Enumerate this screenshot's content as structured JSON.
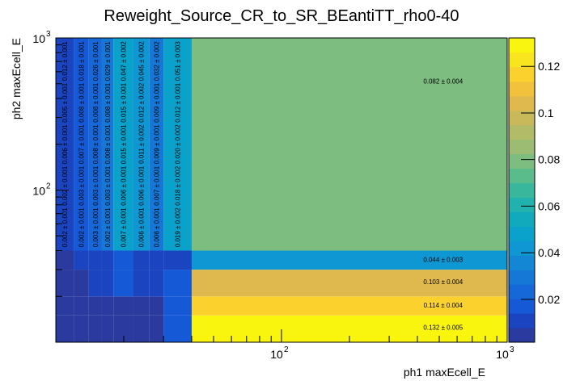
{
  "chart_data": {
    "type": "heatmap",
    "title": "Reweight_Source_CR_to_SR_BEantiTT_rho0-40",
    "xlabel": "ph1 maxEcell_E",
    "ylabel": "ph2 maxEcell_E",
    "x_scale": "log",
    "y_scale": "log",
    "xlim": [
      10,
      1000
    ],
    "ylim": [
      10,
      1000
    ],
    "x_ticks": [
      {
        "base": "10",
        "exp": "2",
        "value": 100
      },
      {
        "base": "10",
        "exp": "3",
        "value": 1000
      }
    ],
    "y_ticks": [
      {
        "base": "10",
        "exp": "2",
        "value": 100
      },
      {
        "base": "10",
        "exp": "3",
        "value": 1000
      }
    ],
    "x_bin_edges": [
      10,
      12,
      14,
      16,
      18,
      22,
      26,
      30,
      40,
      1000
    ],
    "y_bin_edges": [
      10,
      15,
      20,
      30,
      40,
      1000
    ],
    "values": [
      [
        0.002,
        0.002,
        0.003,
        0.002,
        0.007,
        0.006,
        0.006,
        0.019,
        0.132
      ],
      [
        0.002,
        0.003,
        0.003,
        0.003,
        0.006,
        0.006,
        0.007,
        0.018,
        0.114
      ],
      [
        0.006,
        0.007,
        0.008,
        0.008,
        0.015,
        0.011,
        0.009,
        0.02,
        0.103
      ],
      [
        0.005,
        0.008,
        0.008,
        0.008,
        0.015,
        0.012,
        0.009,
        0.012,
        0.044
      ],
      [
        0.012,
        0.018,
        0.026,
        0.029,
        0.047,
        0.045,
        0.032,
        0.051,
        0.082
      ]
    ],
    "errors": [
      [
        0.001,
        0.001,
        0.001,
        0.001,
        0.001,
        0.001,
        0.001,
        0.002,
        0.005
      ],
      [
        0.001,
        0.001,
        0.001,
        0.001,
        0.001,
        0.001,
        0.001,
        0.002,
        0.004
      ],
      [
        0.001,
        0.001,
        0.001,
        0.001,
        0.001,
        0.002,
        0.001,
        0.002,
        0.004
      ],
      [
        0.001,
        0.001,
        0.001,
        0.001,
        0.001,
        0.002,
        0.001,
        0.001,
        0.003
      ],
      [
        0.001,
        0.001,
        0.001,
        0.001,
        0.002,
        0.002,
        0.002,
        0.003,
        0.004
      ]
    ],
    "zlim": [
      0.0016,
      0.1322
    ],
    "z_ticks": [
      "0.02",
      "0.04",
      "0.06",
      "0.08",
      "0.1",
      "0.12"
    ],
    "palette": [
      "#2a3a9f",
      "#1a44c0",
      "#1559d6",
      "#1668d8",
      "#1577d6",
      "#1487d4",
      "#0e97d2",
      "#0aa1ca",
      "#11aabd",
      "#22b2ad",
      "#38b79c",
      "#5abb8b",
      "#7dbd80",
      "#9bbc72",
      "#b2bb67",
      "#cab95b",
      "#e0b94e",
      "#f3c23c",
      "#fbd22d",
      "#f8e520",
      "#f9f50f"
    ],
    "legend": "colorbar-right",
    "grid": false
  }
}
